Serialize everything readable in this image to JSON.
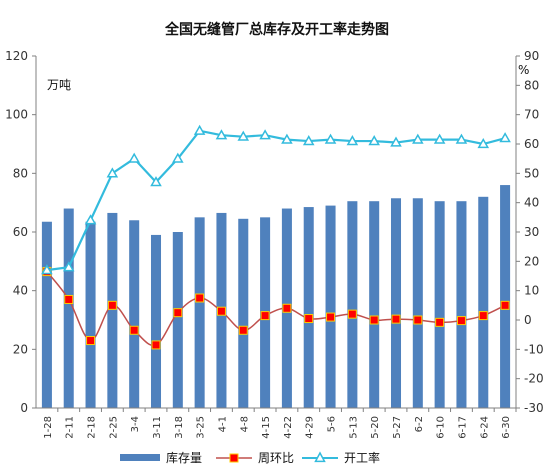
{
  "chart_data": {
    "type": "bar",
    "title": "全国无缝管厂总库存及开工率走势图",
    "y_left_unit": "万吨",
    "y_right_unit": "%",
    "y_left_range": [
      0,
      120
    ],
    "y_left_ticks": [
      "0",
      "20",
      "40",
      "60",
      "80",
      "100",
      "120"
    ],
    "y_right_range": [
      -30,
      90
    ],
    "y_right_ticks": [
      "-30",
      "-20",
      "-10",
      "0",
      "10",
      "20",
      "30",
      "40",
      "50",
      "60",
      "70",
      "80",
      "90"
    ],
    "categories": [
      "1-28",
      "2-11",
      "2-18",
      "2-25",
      "3-4",
      "3-11",
      "3-18",
      "3-25",
      "4-1",
      "4-8",
      "4-15",
      "4-22",
      "4-29",
      "5-6",
      "5-13",
      "5-20",
      "5-27",
      "6-2",
      "6-10",
      "6-17",
      "6-24",
      "6-30"
    ],
    "series": [
      {
        "name": "库存量",
        "axis": "left",
        "kind": "bar",
        "color": "#4F81BD",
        "values": [
          63.5,
          68,
          63.5,
          66.5,
          64,
          59,
          60,
          65,
          66.5,
          64.5,
          65,
          68,
          68.5,
          69,
          70.5,
          70.5,
          71.5,
          71.5,
          70.5,
          70.5,
          72,
          76
        ]
      },
      {
        "name": "周环比",
        "axis": "right",
        "kind": "line",
        "color": "#C0504D",
        "marker": "square",
        "marker_color": "#FF0000",
        "values": [
          16.5,
          7,
          -7,
          5,
          -3.5,
          -8.5,
          2.5,
          7.5,
          3,
          -3.5,
          1.5,
          4,
          0.5,
          1,
          2,
          0,
          0.3,
          0,
          -0.8,
          -0.2,
          1.5,
          5
        ]
      },
      {
        "name": "开工率",
        "axis": "right",
        "kind": "line",
        "color": "#33BBDD",
        "marker": "triangle",
        "values": [
          17,
          18,
          34,
          50,
          55,
          47,
          55,
          64.5,
          63,
          62.5,
          63,
          61.5,
          61,
          61.5,
          61,
          61,
          60.5,
          61.5,
          61.5,
          61.5,
          60,
          62
        ]
      }
    ],
    "grid": false,
    "legend": "bottom"
  }
}
